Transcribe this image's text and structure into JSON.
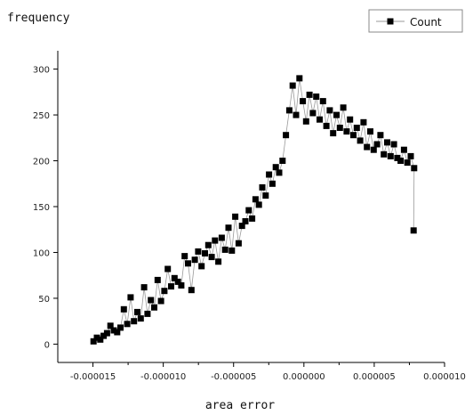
{
  "chart_data": {
    "type": "line",
    "title": "",
    "xlabel": "area error",
    "ylabel": "frequency",
    "xlim": [
      -1.75e-05,
      1e-05
    ],
    "ylim": [
      -20,
      320
    ],
    "x_ticks": [
      -1.5e-05,
      -1e-05,
      -5e-06,
      0,
      5e-06,
      1e-05
    ],
    "x_tick_labels": [
      "-0.000015",
      "-0.000010",
      "-0.000005",
      "0.000000",
      "0.000005",
      "0.000010"
    ],
    "y_ticks": [
      0,
      50,
      100,
      150,
      200,
      250,
      300
    ],
    "y_tick_labels": [
      "0",
      "50",
      "100",
      "150",
      "200",
      "250",
      "300"
    ],
    "grid": false,
    "legend_position": "top-right",
    "series": [
      {
        "name": "Count",
        "marker": "square",
        "color": "#000000",
        "line_color": "#9a9a9a",
        "x": [
          -1.496e-05,
          -1.472e-05,
          -1.448e-05,
          -1.424e-05,
          -1.4e-05,
          -1.376e-05,
          -1.352e-05,
          -1.328e-05,
          -1.304e-05,
          -1.28e-05,
          -1.256e-05,
          -1.232e-05,
          -1.208e-05,
          -1.184e-05,
          -1.16e-05,
          -1.136e-05,
          -1.112e-05,
          -1.088e-05,
          -1.064e-05,
          -1.04e-05,
          -1.016e-05,
          -9.92e-06,
          -9.68e-06,
          -9.44e-06,
          -9.2e-06,
          -8.96e-06,
          -8.72e-06,
          -8.48e-06,
          -8.24e-06,
          -8e-06,
          -7.76e-06,
          -7.52e-06,
          -7.28e-06,
          -7.04e-06,
          -6.8e-06,
          -6.56e-06,
          -6.32e-06,
          -6.08e-06,
          -5.84e-06,
          -5.6e-06,
          -5.36e-06,
          -5.12e-06,
          -4.88e-06,
          -4.64e-06,
          -4.4e-06,
          -4.16e-06,
          -3.92e-06,
          -3.68e-06,
          -3.44e-06,
          -3.2e-06,
          -2.96e-06,
          -2.72e-06,
          -2.48e-06,
          -2.24e-06,
          -2e-06,
          -1.76e-06,
          -1.52e-06,
          -1.28e-06,
          -1.04e-06,
          -8e-07,
          -5.6e-07,
          -3.2e-07,
          -8e-08,
          1.6e-07,
          4e-07,
          6.4e-07,
          8.8e-07,
          1.12e-06,
          1.36e-06,
          1.6e-06,
          1.84e-06,
          2.08e-06,
          2.32e-06,
          2.56e-06,
          2.8e-06,
          3.04e-06,
          3.28e-06,
          3.52e-06,
          3.76e-06,
          4e-06,
          4.24e-06,
          4.48e-06,
          4.72e-06,
          4.96e-06,
          5.2e-06,
          5.44e-06,
          5.68e-06,
          5.92e-06,
          6.16e-06,
          6.4e-06,
          6.64e-06,
          6.88e-06,
          7.12e-06,
          7.36e-06,
          7.6e-06,
          7.84e-06,
          7.8e-06
        ],
        "y": [
          3,
          7,
          5,
          9,
          12,
          20,
          15,
          13,
          18,
          38,
          22,
          51,
          25,
          35,
          28,
          62,
          33,
          48,
          40,
          70,
          47,
          58,
          82,
          63,
          72,
          68,
          64,
          96,
          88,
          59,
          92,
          101,
          85,
          99,
          108,
          95,
          113,
          90,
          116,
          103,
          127,
          102,
          139,
          110,
          129,
          134,
          146,
          137,
          158,
          152,
          171,
          162,
          185,
          175,
          193,
          187,
          200,
          228,
          255,
          282,
          250,
          290,
          265,
          243,
          272,
          252,
          270,
          245,
          265,
          238,
          255,
          230,
          250,
          236,
          258,
          232,
          245,
          228,
          236,
          222,
          242,
          215,
          232,
          212,
          218,
          228,
          207,
          220,
          205,
          218,
          203,
          200,
          212,
          198,
          205,
          192,
          124
        ]
      }
    ]
  }
}
